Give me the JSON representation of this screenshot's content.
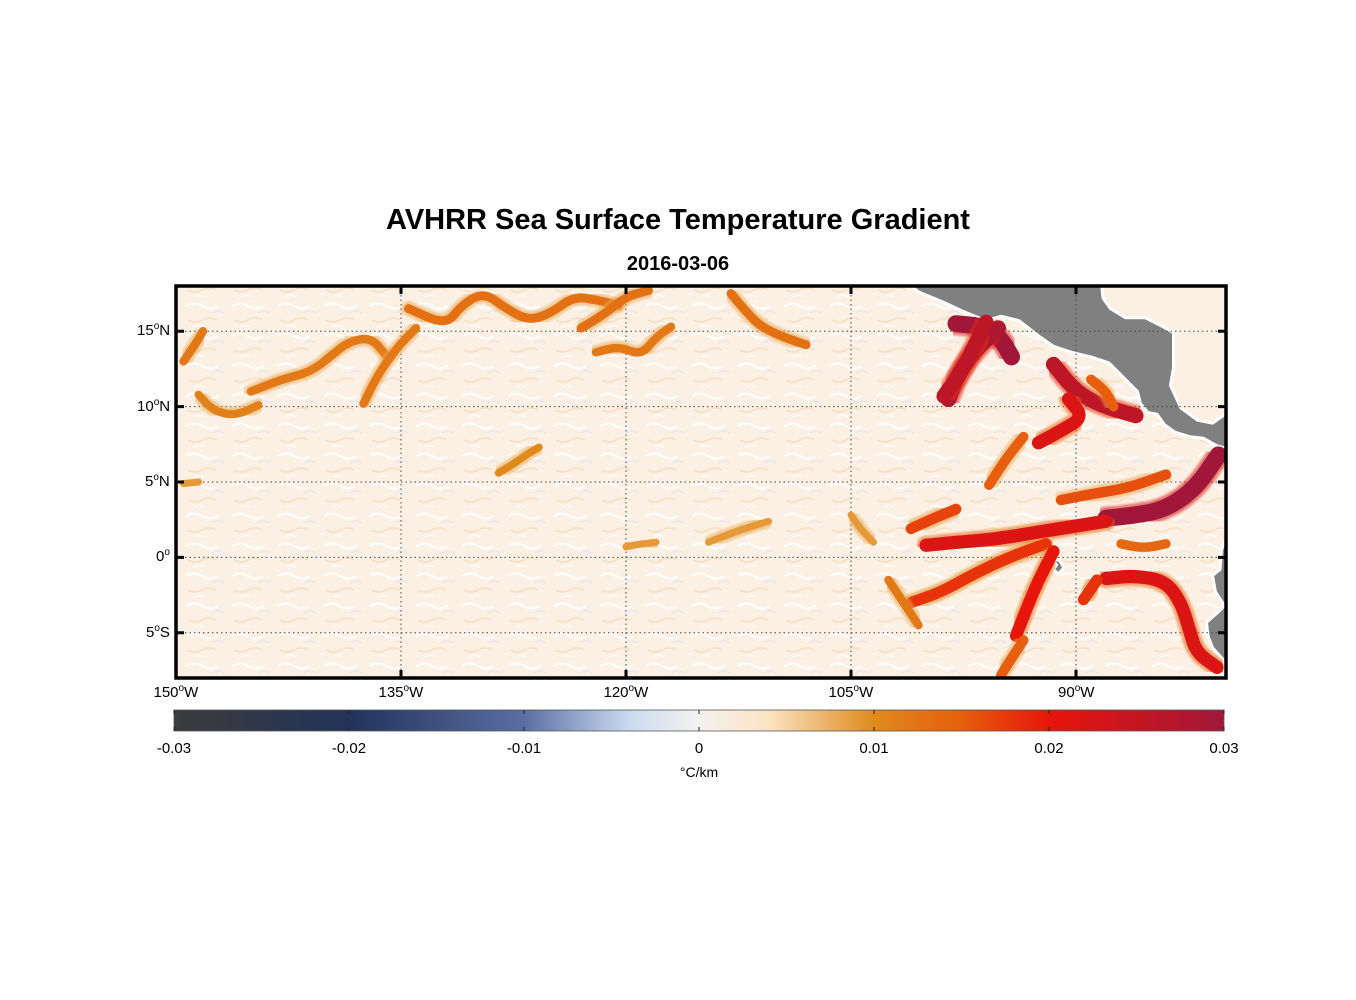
{
  "title": "AVHRR Sea Surface Temperature Gradient",
  "subtitle": "2016-03-06",
  "map": {
    "projection": "equirectangular",
    "extent": {
      "lon_min": -150,
      "lon_max": -80,
      "lat_min": -8,
      "lat_max": 18
    },
    "gridlines": true,
    "land_color": "#808080",
    "lon_ticks": [
      {
        "lon": -150,
        "num": "150",
        "hemi": "W"
      },
      {
        "lon": -135,
        "num": "135",
        "hemi": "W"
      },
      {
        "lon": -120,
        "num": "120",
        "hemi": "W"
      },
      {
        "lon": -105,
        "num": "105",
        "hemi": "W"
      },
      {
        "lon": -90,
        "num": "90",
        "hemi": "W"
      }
    ],
    "lat_ticks": [
      {
        "lat": 15,
        "num": "15",
        "hemi": "N"
      },
      {
        "lat": 10,
        "num": "10",
        "hemi": "N"
      },
      {
        "lat": 5,
        "num": "5",
        "hemi": "N"
      },
      {
        "lat": 0,
        "num": "0",
        "hemi": ""
      },
      {
        "lat": -5,
        "num": "5",
        "hemi": "S"
      }
    ],
    "degree_mark": "o"
  },
  "colorbar": {
    "min": -0.03,
    "max": 0.03,
    "ticks": [
      {
        "value": -0.03,
        "label": "-0.03"
      },
      {
        "value": -0.02,
        "label": "-0.02"
      },
      {
        "value": -0.01,
        "label": "-0.01"
      },
      {
        "value": 0,
        "label": "0"
      },
      {
        "value": 0.01,
        "label": "0.01"
      },
      {
        "value": 0.02,
        "label": "0.02"
      },
      {
        "value": 0.03,
        "label": "0.03"
      }
    ],
    "unit": "°C/km",
    "stops": [
      {
        "value": -0.03,
        "color": "#3b3b3b"
      },
      {
        "value": -0.02,
        "color": "#22335a"
      },
      {
        "value": -0.01,
        "color": "#5a6ea4"
      },
      {
        "value": -0.004,
        "color": "#c9dbef"
      },
      {
        "value": 0,
        "color": "#f4f2ee"
      },
      {
        "value": 0.004,
        "color": "#fbe3c3"
      },
      {
        "value": 0.01,
        "color": "#e08a1c"
      },
      {
        "value": 0.015,
        "color": "#e65e0e"
      },
      {
        "value": 0.02,
        "color": "#e8150a"
      },
      {
        "value": 0.03,
        "color": "#a0173a"
      }
    ]
  },
  "gradient_fronts": [
    {
      "strength": 0.012,
      "pts": [
        [
          -149.5,
          13.0
        ],
        [
          -148.8,
          14.0
        ],
        [
          -148.2,
          15.0
        ]
      ]
    },
    {
      "strength": 0.011,
      "pts": [
        [
          -148.5,
          10.8
        ],
        [
          -147.5,
          9.7
        ],
        [
          -146.0,
          9.4
        ],
        [
          -144.5,
          10.1
        ]
      ]
    },
    {
      "strength": 0.012,
      "pts": [
        [
          -145.0,
          11.0
        ],
        [
          -143.0,
          11.8
        ],
        [
          -141.0,
          12.3
        ],
        [
          -139.5,
          13.5
        ],
        [
          -138.5,
          14.3
        ],
        [
          -137.0,
          14.6
        ],
        [
          -136.0,
          13.4
        ]
      ]
    },
    {
      "strength": 0.012,
      "pts": [
        [
          -137.5,
          10.2
        ],
        [
          -136.5,
          12.2
        ],
        [
          -135.2,
          14.0
        ],
        [
          -134.0,
          15.2
        ]
      ]
    },
    {
      "strength": 0.013,
      "pts": [
        [
          -134.5,
          16.5
        ],
        [
          -132.0,
          15.4
        ],
        [
          -131.0,
          16.7
        ],
        [
          -129.5,
          17.6
        ],
        [
          -128.0,
          16.5
        ],
        [
          -126.5,
          15.7
        ],
        [
          -125.0,
          16.2
        ],
        [
          -123.5,
          17.3
        ],
        [
          -122.0,
          17.1
        ],
        [
          -120.5,
          16.7
        ]
      ]
    },
    {
      "strength": 0.013,
      "pts": [
        [
          -123.0,
          15.2
        ],
        [
          -121.5,
          16.1
        ],
        [
          -120.0,
          17.3
        ],
        [
          -118.5,
          17.7
        ]
      ]
    },
    {
      "strength": 0.012,
      "pts": [
        [
          -122.0,
          13.6
        ],
        [
          -120.5,
          14.0
        ],
        [
          -119.0,
          13.4
        ],
        [
          -118.0,
          14.6
        ],
        [
          -117.0,
          15.3
        ]
      ]
    },
    {
      "strength": 0.013,
      "pts": [
        [
          -113.0,
          17.5
        ],
        [
          -112.0,
          16.3
        ],
        [
          -111.0,
          15.3
        ],
        [
          -109.5,
          14.6
        ],
        [
          -108.0,
          14.1
        ]
      ]
    },
    {
      "strength": 0.01,
      "pts": [
        [
          -128.5,
          5.6
        ],
        [
          -127.5,
          6.2
        ],
        [
          -126.5,
          6.9
        ],
        [
          -125.8,
          7.3
        ]
      ]
    },
    {
      "strength": 0.009,
      "pts": [
        [
          -149.5,
          4.9
        ],
        [
          -148.5,
          5.0
        ]
      ]
    },
    {
      "strength": 0.009,
      "pts": [
        [
          -114.5,
          1.0
        ],
        [
          -113.0,
          1.6
        ],
        [
          -111.5,
          2.1
        ],
        [
          -110.5,
          2.4
        ]
      ]
    },
    {
      "strength": 0.009,
      "pts": [
        [
          -120.0,
          0.7
        ],
        [
          -119.0,
          0.9
        ],
        [
          -118.0,
          1.0
        ]
      ]
    },
    {
      "strength": 0.009,
      "pts": [
        [
          -105.0,
          2.8
        ],
        [
          -104.3,
          1.8
        ],
        [
          -103.5,
          1.0
        ]
      ]
    },
    {
      "strength": 0.03,
      "pts": [
        [
          -98.0,
          15.5
        ],
        [
          -96.0,
          15.3
        ],
        [
          -95.0,
          14.5
        ],
        [
          -94.3,
          13.3
        ]
      ]
    },
    {
      "strength": 0.028,
      "pts": [
        [
          -95.2,
          15.2
        ],
        [
          -96.5,
          14.0
        ],
        [
          -97.8,
          12.3
        ],
        [
          -98.5,
          10.5
        ]
      ]
    },
    {
      "strength": 0.026,
      "pts": [
        [
          -96.0,
          15.6
        ],
        [
          -97.5,
          12.5
        ],
        [
          -98.8,
          10.7
        ]
      ]
    },
    {
      "strength": 0.026,
      "pts": [
        [
          -91.5,
          12.8
        ],
        [
          -90.2,
          11.2
        ],
        [
          -89.0,
          10.4
        ],
        [
          -87.5,
          9.8
        ],
        [
          -86.0,
          9.4
        ]
      ]
    },
    {
      "strength": 0.022,
      "pts": [
        [
          -90.5,
          10.5
        ],
        [
          -89.5,
          9.3
        ],
        [
          -91.0,
          8.4
        ],
        [
          -92.5,
          7.6
        ]
      ]
    },
    {
      "strength": 0.015,
      "pts": [
        [
          -89.0,
          11.8
        ],
        [
          -88.0,
          11.0
        ],
        [
          -87.5,
          10.0
        ]
      ]
    },
    {
      "strength": 0.015,
      "pts": [
        [
          -93.5,
          8.0
        ],
        [
          -94.7,
          6.5
        ],
        [
          -95.8,
          4.8
        ]
      ]
    },
    {
      "strength": 0.03,
      "pts": [
        [
          -80.5,
          6.8
        ],
        [
          -82.0,
          4.6
        ],
        [
          -84.0,
          3.2
        ],
        [
          -86.0,
          2.8
        ],
        [
          -88.0,
          2.6
        ]
      ]
    },
    {
      "strength": 0.022,
      "pts": [
        [
          -88.0,
          2.4
        ],
        [
          -90.5,
          2.0
        ],
        [
          -93.0,
          1.6
        ],
        [
          -95.5,
          1.2
        ],
        [
          -98.0,
          1.0
        ],
        [
          -100.0,
          0.8
        ]
      ]
    },
    {
      "strength": 0.018,
      "pts": [
        [
          -92.0,
          0.9
        ],
        [
          -94.5,
          0.0
        ],
        [
          -97.0,
          -1.2
        ],
        [
          -99.0,
          -2.3
        ],
        [
          -101.0,
          -3.0
        ]
      ]
    },
    {
      "strength": 0.016,
      "pts": [
        [
          -84.0,
          5.5
        ],
        [
          -86.5,
          4.6
        ],
        [
          -89.0,
          4.2
        ],
        [
          -91.0,
          3.8
        ]
      ]
    },
    {
      "strength": 0.02,
      "pts": [
        [
          -91.5,
          0.4
        ],
        [
          -92.5,
          -1.5
        ],
        [
          -93.3,
          -3.4
        ],
        [
          -94.0,
          -5.2
        ]
      ]
    },
    {
      "strength": 0.022,
      "pts": [
        [
          -88.0,
          -1.4
        ],
        [
          -86.0,
          -1.2
        ],
        [
          -84.0,
          -1.6
        ],
        [
          -83.0,
          -3.0
        ],
        [
          -82.5,
          -4.6
        ],
        [
          -82.0,
          -6.3
        ],
        [
          -80.6,
          -7.3
        ]
      ]
    },
    {
      "strength": 0.018,
      "pts": [
        [
          -89.5,
          -2.8
        ],
        [
          -88.6,
          -1.5
        ]
      ]
    },
    {
      "strength": 0.017,
      "pts": [
        [
          -98.0,
          3.2
        ],
        [
          -99.5,
          2.6
        ],
        [
          -101.0,
          1.9
        ]
      ]
    },
    {
      "strength": 0.014,
      "pts": [
        [
          -87.0,
          0.9
        ],
        [
          -85.5,
          0.6
        ],
        [
          -84.0,
          0.9
        ]
      ]
    },
    {
      "strength": 0.015,
      "pts": [
        [
          -93.5,
          -5.5
        ],
        [
          -94.5,
          -7.0
        ],
        [
          -95.0,
          -7.8
        ]
      ]
    },
    {
      "strength": 0.012,
      "pts": [
        [
          -102.5,
          -1.5
        ],
        [
          -101.5,
          -3.0
        ],
        [
          -100.5,
          -4.5
        ]
      ]
    }
  ]
}
